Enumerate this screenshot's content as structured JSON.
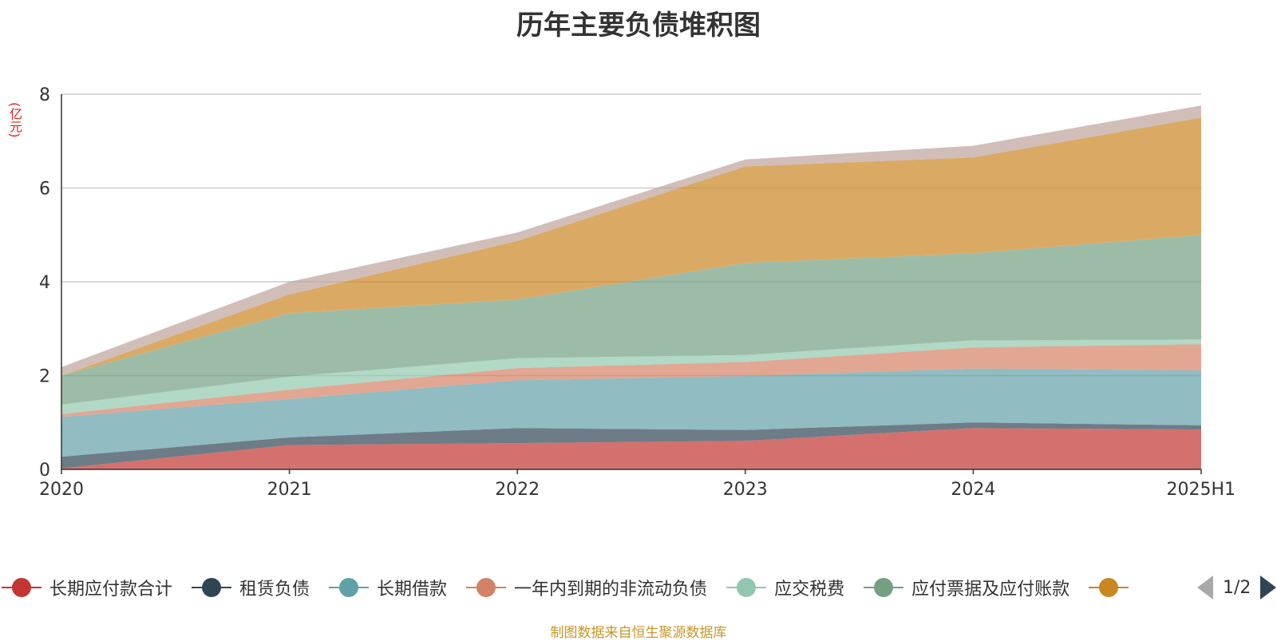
{
  "chart_data": {
    "type": "area",
    "stacked": true,
    "title": "历年主要负债堆积图",
    "unit": "(亿元)",
    "categories": [
      "2020",
      "2021",
      "2022",
      "2023",
      "2024",
      "2025H1"
    ],
    "ylim": [
      0,
      8
    ],
    "yticks": [
      "0",
      "2",
      "4",
      "6",
      "8"
    ],
    "grid": true,
    "legend_position": "bottom",
    "series": [
      {
        "name": "长期应付款合计",
        "color": "#c23531",
        "values": [
          0.02,
          0.52,
          0.56,
          0.61,
          0.88,
          0.85
        ]
      },
      {
        "name": "租赁负债",
        "color": "#2f4554",
        "values": [
          0.25,
          0.16,
          0.32,
          0.23,
          0.12,
          0.09
        ]
      },
      {
        "name": "长期借款",
        "color": "#61a0a8",
        "values": [
          0.85,
          0.82,
          1.02,
          1.15,
          1.15,
          1.17
        ]
      },
      {
        "name": "一年内到期的非流动负债",
        "color": "#d48265",
        "values": [
          0.06,
          0.2,
          0.26,
          0.3,
          0.45,
          0.56
        ]
      },
      {
        "name": "应交税费",
        "color": "#91c7ae",
        "values": [
          0.2,
          0.28,
          0.21,
          0.15,
          0.15,
          0.1
        ]
      },
      {
        "name": "应付票据及应付账款",
        "color": "#749f83",
        "values": [
          0.62,
          1.35,
          1.25,
          1.96,
          1.86,
          2.23
        ]
      },
      {
        "name": "",
        "color": "#ca8622",
        "values": [
          0.0,
          0.4,
          1.25,
          2.06,
          2.04,
          2.5
        ]
      },
      {
        "name": "",
        "color": "#bda29a",
        "values": [
          0.18,
          0.27,
          0.18,
          0.15,
          0.25,
          0.26
        ]
      }
    ]
  },
  "legend": {
    "items": [
      {
        "label": "长期应付款合计",
        "color": "#c23531"
      },
      {
        "label": "租赁负债",
        "color": "#2f4554"
      },
      {
        "label": "长期借款",
        "color": "#61a0a8"
      },
      {
        "label": "一年内到期的非流动负债",
        "color": "#d48265"
      },
      {
        "label": "应交税费",
        "color": "#91c7ae"
      },
      {
        "label": "应付票据及应付账款",
        "color": "#749f83"
      },
      {
        "label": "",
        "color": "#ca8622"
      }
    ],
    "pager": "1/2"
  },
  "footer": {
    "source": "制图数据来自恒生聚源数据库"
  }
}
